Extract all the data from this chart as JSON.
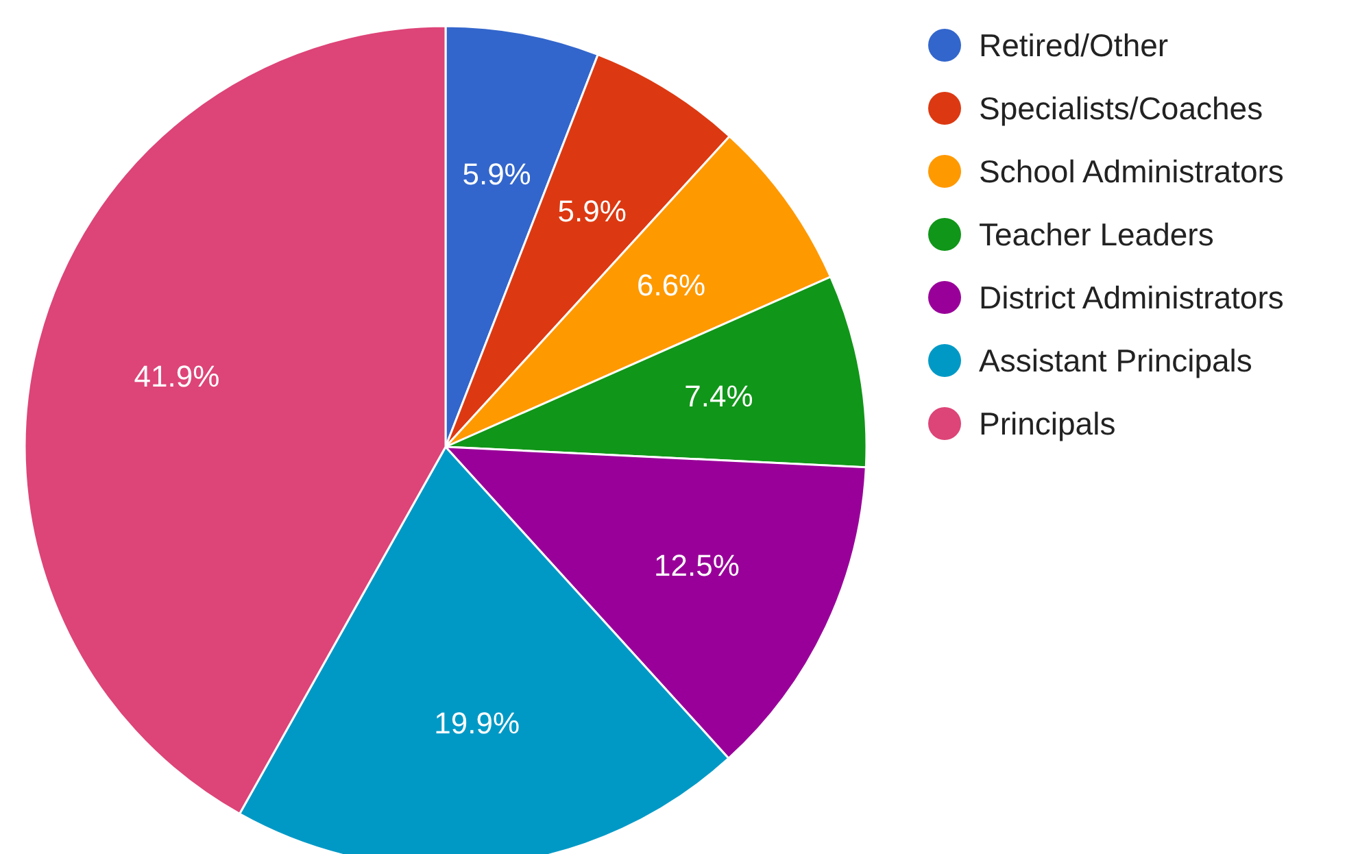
{
  "chart_data": {
    "type": "pie",
    "categories": [
      "Retired/Other",
      "Specialists/Coaches",
      "School Administrators",
      "Teacher Leaders",
      "District Administrators",
      "Assistant Principals",
      "Principals"
    ],
    "values": [
      5.9,
      5.9,
      6.6,
      7.4,
      12.5,
      19.9,
      41.9
    ],
    "value_labels": [
      "5.9%",
      "5.9%",
      "6.6%",
      "7.4%",
      "12.5%",
      "19.9%",
      "41.9%"
    ],
    "colors": [
      "#3366cc",
      "#dc3912",
      "#ff9900",
      "#109618",
      "#990099",
      "#0099c6",
      "#dd4477"
    ],
    "legend": "right"
  }
}
